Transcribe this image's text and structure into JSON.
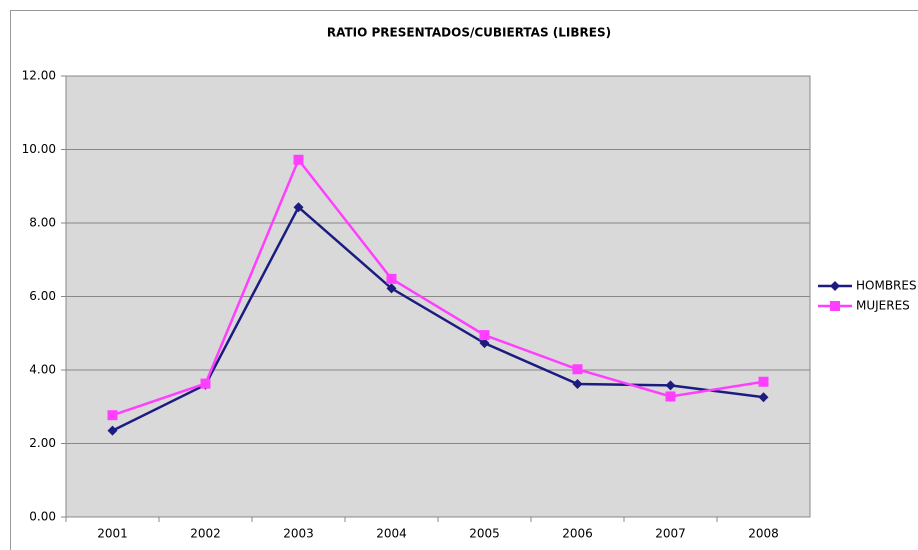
{
  "chart_data": {
    "type": "line",
    "title": "RATIO PRESENTADOS/CUBIERTAS (LIBRES)",
    "categories": [
      "2001",
      "2002",
      "2003",
      "2004",
      "2005",
      "2006",
      "2007",
      "2008"
    ],
    "series": [
      {
        "name": "HOMBRES",
        "color": "#1c1c80",
        "marker": "diamond",
        "values": [
          2.35,
          3.6,
          8.43,
          6.22,
          4.73,
          3.62,
          3.58,
          3.26
        ]
      },
      {
        "name": "MUJERES",
        "color": "#ff3fff",
        "marker": "square",
        "values": [
          2.77,
          3.63,
          9.72,
          6.48,
          4.95,
          4.02,
          3.28,
          3.68
        ]
      }
    ],
    "ylim": [
      0,
      12
    ],
    "yticks": [
      {
        "value": 0,
        "label": "0.00"
      },
      {
        "value": 2,
        "label": "2.00"
      },
      {
        "value": 4,
        "label": "4.00"
      },
      {
        "value": 6,
        "label": "6.00"
      },
      {
        "value": 8,
        "label": "8.00"
      },
      {
        "value": 10,
        "label": "10.00"
      },
      {
        "value": 12,
        "label": "12.00"
      }
    ],
    "grid": true,
    "legend": "right"
  }
}
